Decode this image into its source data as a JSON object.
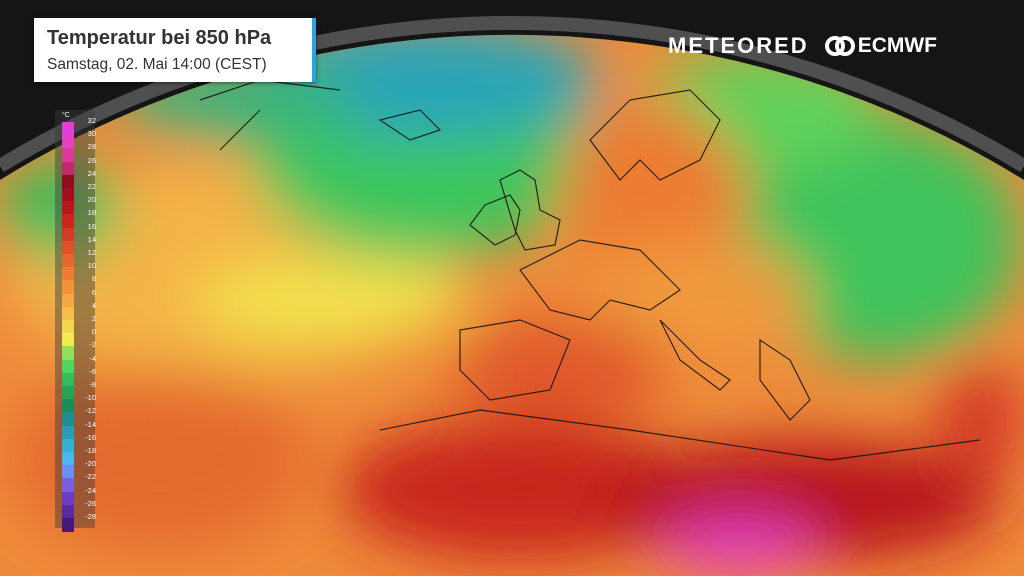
{
  "header": {
    "title": "Temperatur bei 850 hPa",
    "subtitle": "Samstag, 02. Mai 14:00 (CEST)",
    "accent_color": "#2aa6df"
  },
  "logos": {
    "meteored": "METEORED",
    "ecmwf": "ECMWF"
  },
  "legend": {
    "unit": "°C",
    "items": [
      {
        "label": "32",
        "color": "#e03fd6"
      },
      {
        "label": "30",
        "color": "#e542c0"
      },
      {
        "label": "28",
        "color": "#dd3a9c"
      },
      {
        "label": "26",
        "color": "#c32a6a"
      },
      {
        "label": "24",
        "color": "#8f0c1e"
      },
      {
        "label": "22",
        "color": "#a30f1c"
      },
      {
        "label": "20",
        "color": "#b8181c"
      },
      {
        "label": "18",
        "color": "#c8261f"
      },
      {
        "label": "16",
        "color": "#d43b26"
      },
      {
        "label": "14",
        "color": "#de522a"
      },
      {
        "label": "12",
        "color": "#e5672e"
      },
      {
        "label": "10",
        "color": "#ec7d33"
      },
      {
        "label": "8",
        "color": "#f2923a"
      },
      {
        "label": "6",
        "color": "#f5a843"
      },
      {
        "label": "4",
        "color": "#f7bd4b"
      },
      {
        "label": "2",
        "color": "#f5d451"
      },
      {
        "label": "0",
        "color": "#f2ea4e"
      },
      {
        "label": "-2",
        "color": "#8fe05a"
      },
      {
        "label": "-4",
        "color": "#52d35d"
      },
      {
        "label": "-6",
        "color": "#33bd5a"
      },
      {
        "label": "-8",
        "color": "#26a454"
      },
      {
        "label": "-10",
        "color": "#1d8b55"
      },
      {
        "label": "-12",
        "color": "#1f8c8f"
      },
      {
        "label": "-14",
        "color": "#2a9db5"
      },
      {
        "label": "-16",
        "color": "#36afd4"
      },
      {
        "label": "-18",
        "color": "#4ab8ec"
      },
      {
        "label": "-20",
        "color": "#6b8ff0"
      },
      {
        "label": "-22",
        "color": "#7a5ee0"
      },
      {
        "label": "-24",
        "color": "#6c3cc4"
      },
      {
        "label": "-26",
        "color": "#5a2aa0"
      },
      {
        "label": "-28",
        "color": "#451a7a"
      }
    ]
  }
}
